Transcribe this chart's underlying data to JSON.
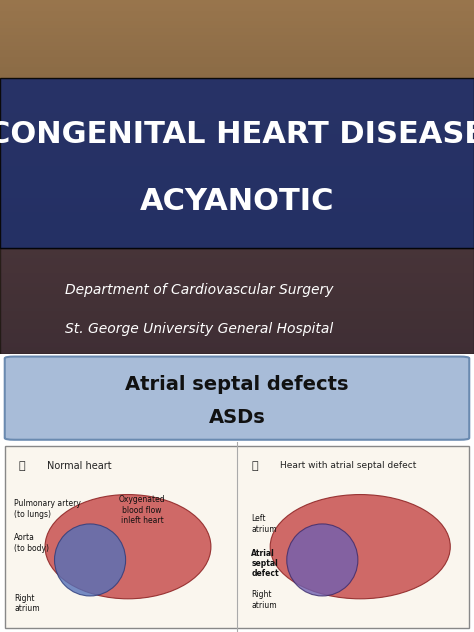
{
  "title_line1": "CONGENITAL HEART DISEASE",
  "title_line2": "ACYANOTIC",
  "title_banner_color": "#1a2b6b",
  "title_banner_alpha": 0.88,
  "title_text_color": "#ffffff",
  "title_fontsize": 22,
  "bg_top_color": "#7a6040",
  "dept_line1": "Department of Cardiovascular Surgery",
  "dept_line2": "St. George University General Hospital",
  "dept_text_color": "#ffffff",
  "dept_fontsize": 10,
  "asd_box_color": "#a8bcd8",
  "asd_box_edge_color": "#6a8ab0",
  "asd_title_line1": "Atrial septal defects",
  "asd_title_line2": "ASDs",
  "asd_title_color": "#111111",
  "asd_title_fontsize": 14,
  "fig_width": 4.74,
  "fig_height": 6.32,
  "dpi": 100
}
